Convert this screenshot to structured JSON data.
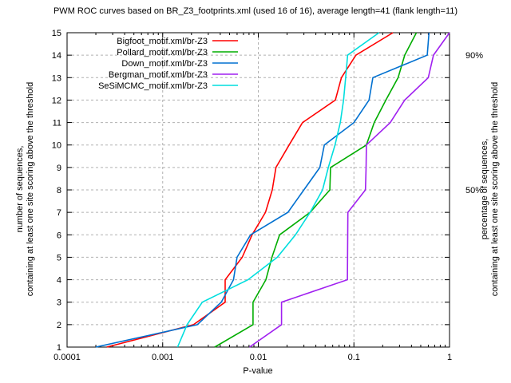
{
  "title": "PWM ROC curves based on BR_Z3_footprints.xml (used 16 of 16), average length=41 (flank length=11)",
  "axes": {
    "x_label": "P-value",
    "x_scale": "log",
    "x_range": [
      0.0001,
      1
    ],
    "x_tick_labels": [
      "0.0001",
      "0.001",
      "0.01",
      "0.1",
      "1"
    ],
    "y_range": [
      1,
      15
    ],
    "y_tick_labels": [
      "1",
      "2",
      "3",
      "4",
      "5",
      "6",
      "7",
      "8",
      "9",
      "10",
      "11",
      "12",
      "13",
      "14",
      "15"
    ],
    "y_left_label_line1": "number of sequences,",
    "y_left_label_line2": "containing at least one site scoring above the threshold",
    "y_right_label_line1": "percentage of sequences,",
    "y_right_label_line2": "containing at least one site scoring above the threshold",
    "y2_ticks": [
      {
        "label": "90%",
        "at_count": 14
      },
      {
        "label": "50%",
        "at_count": 8
      }
    ],
    "grid": "dashed horizontal at counts 2-14, dashed vertical at 0.001, 0.01, 0.1"
  },
  "chart_data": {
    "type": "line",
    "x_name": "P-value",
    "y_name": "number of sequences containing at least one site scoring above the threshold",
    "counts": [
      1,
      2,
      3,
      4,
      5,
      6,
      7,
      8,
      9,
      10,
      11,
      12,
      13,
      14,
      15
    ],
    "series": [
      {
        "name": "Bigfoot_motif.xml/br-Z3",
        "color": "#ff0000",
        "p_values": [
          0.00026,
          0.0021,
          0.0045,
          0.0045,
          0.0068,
          0.0086,
          0.0119,
          0.014,
          0.0153,
          0.021,
          0.029,
          0.064,
          0.074,
          0.105,
          0.256
        ]
      },
      {
        "name": "Pollard_motif.xml/br-Z3",
        "color": "#00ad00",
        "p_values": [
          0.0035,
          0.0088,
          0.0088,
          0.012,
          0.0139,
          0.0167,
          0.0348,
          0.056,
          0.057,
          0.135,
          0.163,
          0.216,
          0.29,
          0.34,
          0.45
        ]
      },
      {
        "name": "Down_motif.xml/br-Z3",
        "color": "#0070d0",
        "p_values": [
          0.0002,
          0.0023,
          0.0041,
          0.0055,
          0.006,
          0.0083,
          0.0204,
          0.03,
          0.044,
          0.049,
          0.1,
          0.144,
          0.158,
          0.585,
          0.61
        ]
      },
      {
        "name": "Bergman_motif.xml/br-Z3",
        "color": "#a020f0",
        "p_values": [
          0.0081,
          0.0175,
          0.0175,
          0.0855,
          0.0858,
          0.0861,
          0.0865,
          0.132,
          0.134,
          0.135,
          0.24,
          0.34,
          0.6,
          0.68,
          1.0
        ]
      },
      {
        "name": "SeSiMCMC_motif.xml/br-Z3",
        "color": "#00dede",
        "p_values": [
          0.00143,
          0.0018,
          0.0026,
          0.0078,
          0.0158,
          0.0245,
          0.0348,
          0.047,
          0.054,
          0.0635,
          0.072,
          0.078,
          0.082,
          0.086,
          0.183
        ]
      }
    ],
    "legend_position": "inside top-left"
  },
  "colors": {
    "background": "#ffffff",
    "frame": "#000000",
    "grid": "#b0b0b0",
    "text": "#000000"
  }
}
